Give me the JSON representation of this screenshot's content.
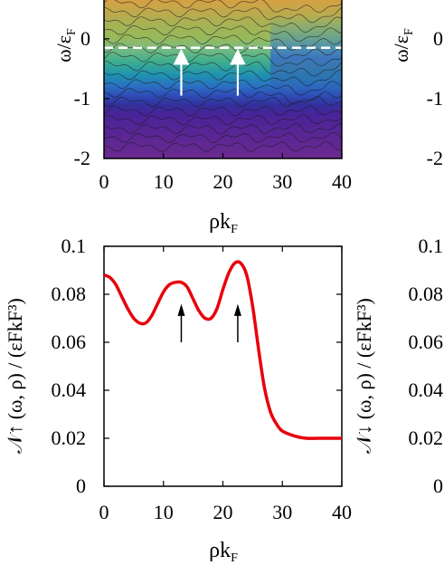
{
  "chart_data": [
    {
      "type": "heatmap",
      "xlabel": "ρk",
      "xlabel_sub": "F",
      "ylabel": "ω/ε",
      "ylabel_sub": "F",
      "xlim": [
        0,
        40
      ],
      "ylim": [
        -2,
        0.8
      ],
      "xticks": [
        "0",
        "10",
        "20",
        "30",
        "40"
      ],
      "yticks": [
        "-2",
        "-1",
        "0"
      ],
      "right_ylabel": "ω/ε",
      "right_ylabel_sub": "F",
      "right_yticks": [
        "-2",
        "-1",
        "0"
      ],
      "reference_line": {
        "y": -0.15,
        "style": "dashed",
        "color": "#ffffff"
      },
      "arrows": [
        {
          "x": 13
        },
        {
          "x": 22.5
        }
      ]
    },
    {
      "type": "line",
      "xlabel": "ρk",
      "xlabel_sub": "F",
      "ylabel": "𝒩↑ (ω, ρ) / (εFkF³)",
      "right_ylabel": "𝒩↓ (ω, ρ) / (εFkF³)",
      "xlim": [
        0,
        40
      ],
      "ylim": [
        0,
        0.1
      ],
      "xticks": [
        "0",
        "10",
        "20",
        "30",
        "40"
      ],
      "yticks": [
        "0",
        "0.02",
        "0.04",
        "0.06",
        "0.08",
        "0.1"
      ],
      "right_yticks": [
        "0",
        "0.02",
        "0.04",
        "0.06",
        "0.08",
        "0.1"
      ],
      "series": [
        {
          "color": "#e8000b",
          "x": [
            0,
            1,
            2,
            3,
            4,
            5,
            6,
            7,
            8,
            9,
            10,
            11,
            12,
            13,
            14,
            15,
            16,
            17,
            18,
            19,
            20,
            21,
            22,
            23,
            24,
            25,
            26,
            27,
            28,
            29,
            30,
            32,
            34,
            36,
            38,
            40
          ],
          "y": [
            0.088,
            0.087,
            0.084,
            0.079,
            0.074,
            0.07,
            0.068,
            0.068,
            0.071,
            0.076,
            0.081,
            0.084,
            0.085,
            0.085,
            0.083,
            0.078,
            0.073,
            0.07,
            0.07,
            0.074,
            0.082,
            0.089,
            0.093,
            0.093,
            0.088,
            0.075,
            0.057,
            0.041,
            0.031,
            0.026,
            0.023,
            0.021,
            0.02,
            0.02,
            0.02,
            0.02
          ]
        }
      ],
      "arrows": [
        {
          "x": 13,
          "color": "#000000"
        },
        {
          "x": 22.5,
          "color": "#000000"
        }
      ]
    }
  ]
}
